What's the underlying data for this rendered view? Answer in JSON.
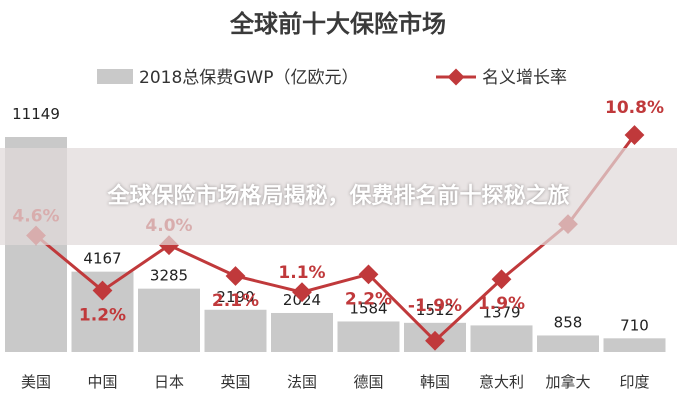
{
  "chart_data": {
    "type": "bar",
    "title": "全球前十大保险市场",
    "categories": [
      "美国",
      "中国",
      "日本",
      "英国",
      "法国",
      "德国",
      "韩国",
      "意大利",
      "加拿大",
      "印度"
    ],
    "series": [
      {
        "name": "2018总保费GWP（亿欧元）",
        "type": "bar",
        "values": [
          11149,
          4167,
          3285,
          2190,
          2024,
          1584,
          1512,
          1379,
          858,
          710
        ],
        "labels": [
          "11149",
          "4167",
          "3285",
          "2190",
          "2024",
          "1584",
          "1512",
          "1379",
          "858",
          "710"
        ],
        "color": "#c9c9c9"
      },
      {
        "name": "名义增长率",
        "type": "line",
        "values": [
          4.6,
          1.2,
          4.0,
          2.1,
          1.1,
          2.2,
          -1.9,
          1.9,
          5.3,
          10.8
        ],
        "labels": [
          "4.6%",
          "1.2%",
          "4.0%",
          "2.1%",
          "1.1%",
          "2.2%",
          "-1.9%",
          "1.9%",
          "",
          "10.8%"
        ],
        "color": "#c0393b"
      }
    ],
    "legend_position": "top",
    "grid": false
  },
  "overlay": {
    "caption": "全球保险市场格局揭秘，保费排名前十探秘之旅"
  }
}
